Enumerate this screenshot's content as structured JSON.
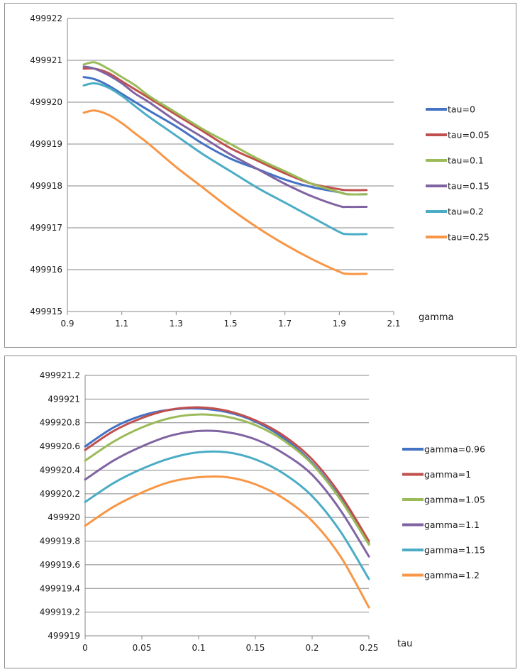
{
  "chart_data": [
    {
      "type": "line",
      "xlabel": "gamma",
      "ylabel": "",
      "xlim": [
        0.9,
        2.1
      ],
      "ylim": [
        499915,
        499922
      ],
      "xticks": [
        0.9,
        1.1,
        1.3,
        1.5,
        1.7,
        1.9,
        2.1
      ],
      "yticks": [
        499915,
        499916,
        499917,
        499918,
        499919,
        499920,
        499921,
        499922
      ],
      "xtick_labels": [
        "0.9",
        "1.1",
        "1.3",
        "1.5",
        "1.7",
        "1.9",
        "2.1"
      ],
      "ytick_labels": [
        "499915",
        "499916",
        "499917",
        "499918",
        "499919",
        "499920",
        "499921",
        "499922"
      ],
      "grid": true,
      "legend_position": "right",
      "x": [
        0.96,
        1.0,
        1.05,
        1.1,
        1.15,
        1.2,
        1.3,
        1.4,
        1.5,
        1.6,
        1.7,
        1.8,
        1.9,
        1.93,
        2.0
      ],
      "series": [
        {
          "name": "tau=0",
          "color": "#4472c4",
          "values": [
            499920.6,
            499920.55,
            499920.4,
            499920.2,
            499920.0,
            499919.8,
            499919.42,
            499919.0,
            499918.65,
            499918.4,
            499918.15,
            499917.97,
            499917.85,
            499917.8,
            499917.8
          ]
        },
        {
          "name": "tau=0.05",
          "color": "#c0504d",
          "values": [
            499920.8,
            499920.8,
            499920.7,
            499920.5,
            499920.3,
            499920.1,
            499919.7,
            499919.3,
            499918.9,
            499918.6,
            499918.3,
            499918.05,
            499917.92,
            499917.9,
            499917.9
          ]
        },
        {
          "name": "tau=0.1",
          "color": "#9bbb59",
          "values": [
            499920.9,
            499920.95,
            499920.8,
            499920.6,
            499920.4,
            499920.15,
            499919.75,
            499919.35,
            499919.0,
            499918.65,
            499918.35,
            499918.05,
            499917.85,
            499917.8,
            499917.8
          ]
        },
        {
          "name": "tau=0.15",
          "color": "#8064a2",
          "values": [
            499920.85,
            499920.8,
            499920.65,
            499920.45,
            499920.2,
            499920.0,
            499919.55,
            499919.15,
            499918.75,
            499918.4,
            499918.05,
            499917.75,
            499917.52,
            499917.5,
            499917.5
          ]
        },
        {
          "name": "tau=0.2",
          "color": "#4bacc6",
          "values": [
            499920.4,
            499920.45,
            499920.35,
            499920.15,
            499919.9,
            499919.65,
            499919.2,
            499918.75,
            499918.35,
            499917.95,
            499917.6,
            499917.25,
            499916.9,
            499916.85,
            499916.85
          ]
        },
        {
          "name": "tau=0.25",
          "color": "#f79646",
          "values": [
            499919.75,
            499919.8,
            499919.7,
            499919.5,
            499919.25,
            499919.0,
            499918.45,
            499917.95,
            499917.45,
            499917.0,
            499916.6,
            499916.25,
            499915.95,
            499915.9,
            499915.9
          ]
        }
      ]
    },
    {
      "type": "line",
      "xlabel": "tau",
      "ylabel": "",
      "xlim": [
        0,
        0.25
      ],
      "ylim": [
        499919,
        499921.2
      ],
      "xticks": [
        0,
        0.05,
        0.1,
        0.15,
        0.2,
        0.25
      ],
      "yticks": [
        499919,
        499919.2,
        499919.4,
        499919.6,
        499919.8,
        499920,
        499920.2,
        499920.4,
        499920.6,
        499920.8,
        499921,
        499921.2
      ],
      "xtick_labels": [
        "0",
        "0.05",
        "0.1",
        "0.15",
        "0.2",
        "0.25"
      ],
      "ytick_labels": [
        "499919",
        "499919.2",
        "499919.4",
        "499919.6",
        "499919.8",
        "499920",
        "499920.2",
        "499920.4",
        "499920.6",
        "499920.8",
        "499921",
        "499921.2"
      ],
      "grid": true,
      "legend_position": "right",
      "x": [
        0,
        0.025,
        0.05,
        0.075,
        0.1,
        0.125,
        0.15,
        0.175,
        0.2,
        0.225,
        0.25
      ],
      "series": [
        {
          "name": "gamma=0.96",
          "color": "#4472c4",
          "values": [
            499920.6,
            499920.76,
            499920.86,
            499920.91,
            499920.92,
            499920.89,
            499920.81,
            499920.67,
            499920.46,
            499920.16,
            499919.78
          ]
        },
        {
          "name": "gamma=1",
          "color": "#c0504d",
          "values": [
            499920.57,
            499920.73,
            499920.84,
            499920.91,
            499920.93,
            499920.9,
            499920.82,
            499920.69,
            499920.49,
            499920.19,
            499919.8
          ]
        },
        {
          "name": "gamma=1.05",
          "color": "#9bbb59",
          "values": [
            499920.48,
            499920.64,
            499920.76,
            499920.84,
            499920.87,
            499920.85,
            499920.78,
            499920.65,
            499920.45,
            499920.15,
            499919.77
          ]
        },
        {
          "name": "gamma=1.1",
          "color": "#8064a2",
          "values": [
            499920.32,
            499920.48,
            499920.6,
            499920.69,
            499920.73,
            499920.72,
            499920.66,
            499920.54,
            499920.36,
            499920.06,
            499919.67
          ]
        },
        {
          "name": "gamma=1.15",
          "color": "#4bacc6",
          "values": [
            499920.13,
            499920.29,
            499920.41,
            499920.5,
            499920.55,
            499920.55,
            499920.49,
            499920.37,
            499920.18,
            499919.88,
            499919.48
          ]
        },
        {
          "name": "gamma=1.2",
          "color": "#f79646",
          "values": [
            499919.93,
            499920.09,
            499920.21,
            499920.3,
            499920.34,
            499920.34,
            499920.28,
            499920.16,
            499919.97,
            499919.67,
            499919.24
          ]
        }
      ]
    }
  ]
}
